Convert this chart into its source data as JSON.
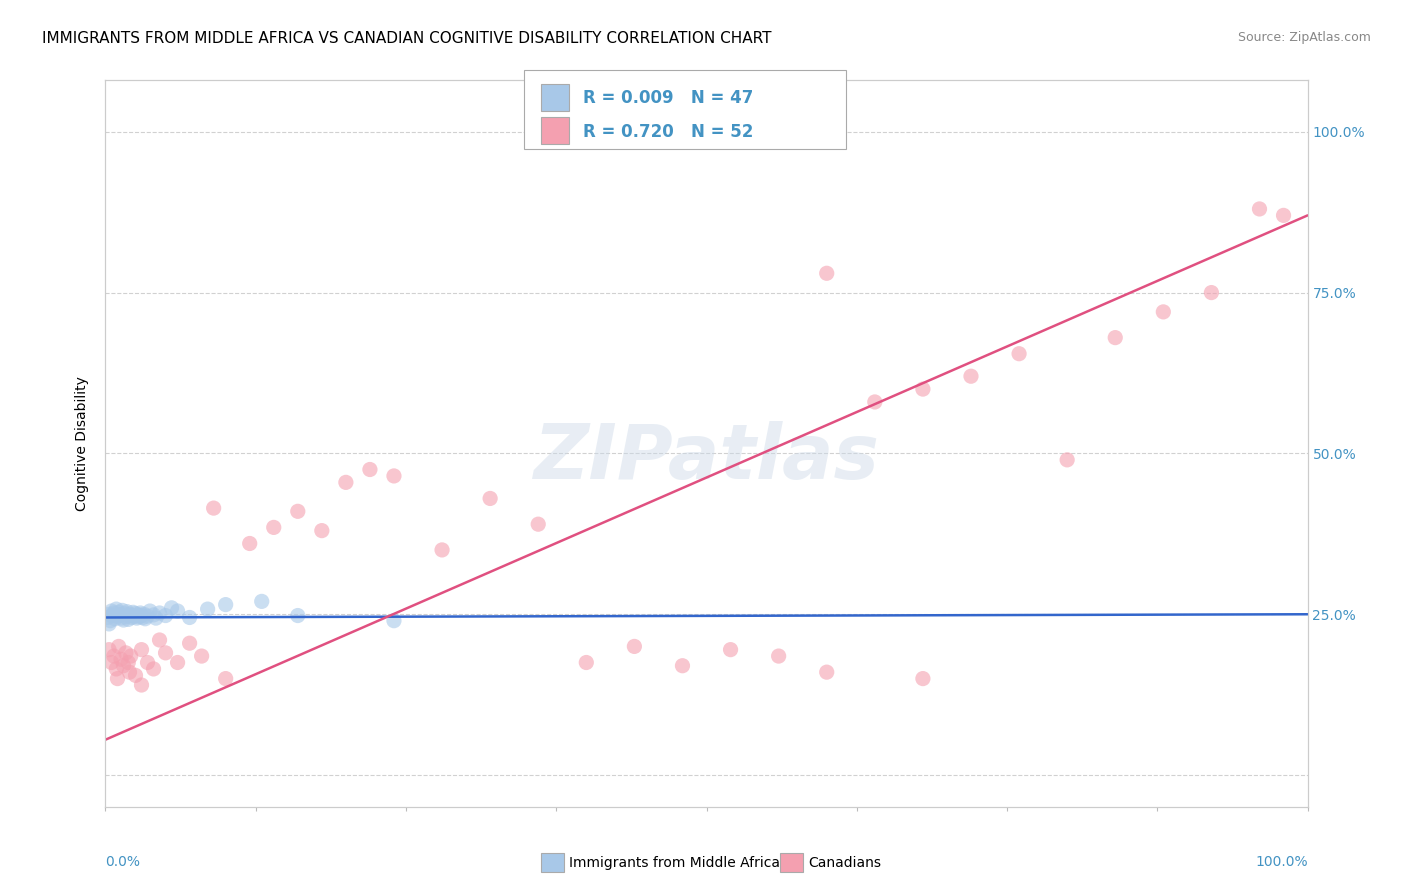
{
  "title": "IMMIGRANTS FROM MIDDLE AFRICA VS CANADIAN COGNITIVE DISABILITY CORRELATION CHART",
  "source": "Source: ZipAtlas.com",
  "ylabel": "Cognitive Disability",
  "legend_blue_label": "Immigrants from Middle Africa",
  "legend_pink_label": "Canadians",
  "blue_R": "0.009",
  "blue_N": "47",
  "pink_R": "0.720",
  "pink_N": "52",
  "blue_color": "#a8c8e8",
  "pink_color": "#f4a0b0",
  "blue_line_color": "#3366cc",
  "pink_line_color": "#e05080",
  "title_fontsize": 11,
  "source_fontsize": 9,
  "ylabel_fontsize": 10,
  "tick_color": "#4393c3",
  "background_color": "#ffffff",
  "grid_color": "#cccccc",
  "blue_scatter_x": [
    0.002,
    0.003,
    0.004,
    0.005,
    0.006,
    0.007,
    0.008,
    0.009,
    0.01,
    0.011,
    0.012,
    0.013,
    0.014,
    0.015,
    0.016,
    0.017,
    0.018,
    0.019,
    0.02,
    0.021,
    0.022,
    0.023,
    0.024,
    0.025,
    0.026,
    0.027,
    0.028,
    0.029,
    0.03,
    0.031,
    0.032,
    0.033,
    0.035,
    0.037,
    0.04,
    0.042,
    0.045,
    0.05,
    0.055,
    0.06,
    0.07,
    0.085,
    0.1,
    0.13,
    0.16,
    0.24,
    0.003
  ],
  "blue_scatter_y": [
    0.245,
    0.25,
    0.24,
    0.255,
    0.248,
    0.252,
    0.243,
    0.258,
    0.247,
    0.253,
    0.249,
    0.244,
    0.256,
    0.241,
    0.251,
    0.246,
    0.254,
    0.242,
    0.25,
    0.248,
    0.245,
    0.253,
    0.247,
    0.251,
    0.244,
    0.249,
    0.246,
    0.252,
    0.248,
    0.245,
    0.25,
    0.243,
    0.247,
    0.255,
    0.249,
    0.244,
    0.252,
    0.248,
    0.26,
    0.255,
    0.245,
    0.258,
    0.265,
    0.27,
    0.248,
    0.24,
    0.235
  ],
  "pink_scatter_x": [
    0.003,
    0.005,
    0.007,
    0.009,
    0.011,
    0.013,
    0.015,
    0.017,
    0.019,
    0.021,
    0.025,
    0.03,
    0.035,
    0.04,
    0.045,
    0.05,
    0.06,
    0.07,
    0.08,
    0.09,
    0.1,
    0.12,
    0.14,
    0.16,
    0.18,
    0.2,
    0.22,
    0.24,
    0.28,
    0.32,
    0.36,
    0.4,
    0.44,
    0.48,
    0.52,
    0.56,
    0.6,
    0.64,
    0.68,
    0.72,
    0.76,
    0.8,
    0.84,
    0.88,
    0.92,
    0.96,
    0.98,
    0.01,
    0.02,
    0.03,
    0.6,
    0.68
  ],
  "pink_scatter_y": [
    0.195,
    0.175,
    0.185,
    0.165,
    0.2,
    0.18,
    0.17,
    0.19,
    0.175,
    0.185,
    0.155,
    0.195,
    0.175,
    0.165,
    0.21,
    0.19,
    0.175,
    0.205,
    0.185,
    0.415,
    0.15,
    0.36,
    0.385,
    0.41,
    0.38,
    0.455,
    0.475,
    0.465,
    0.35,
    0.43,
    0.39,
    0.175,
    0.2,
    0.17,
    0.195,
    0.185,
    0.78,
    0.58,
    0.6,
    0.62,
    0.655,
    0.49,
    0.68,
    0.72,
    0.75,
    0.88,
    0.87,
    0.15,
    0.16,
    0.14,
    0.16,
    0.15
  ]
}
